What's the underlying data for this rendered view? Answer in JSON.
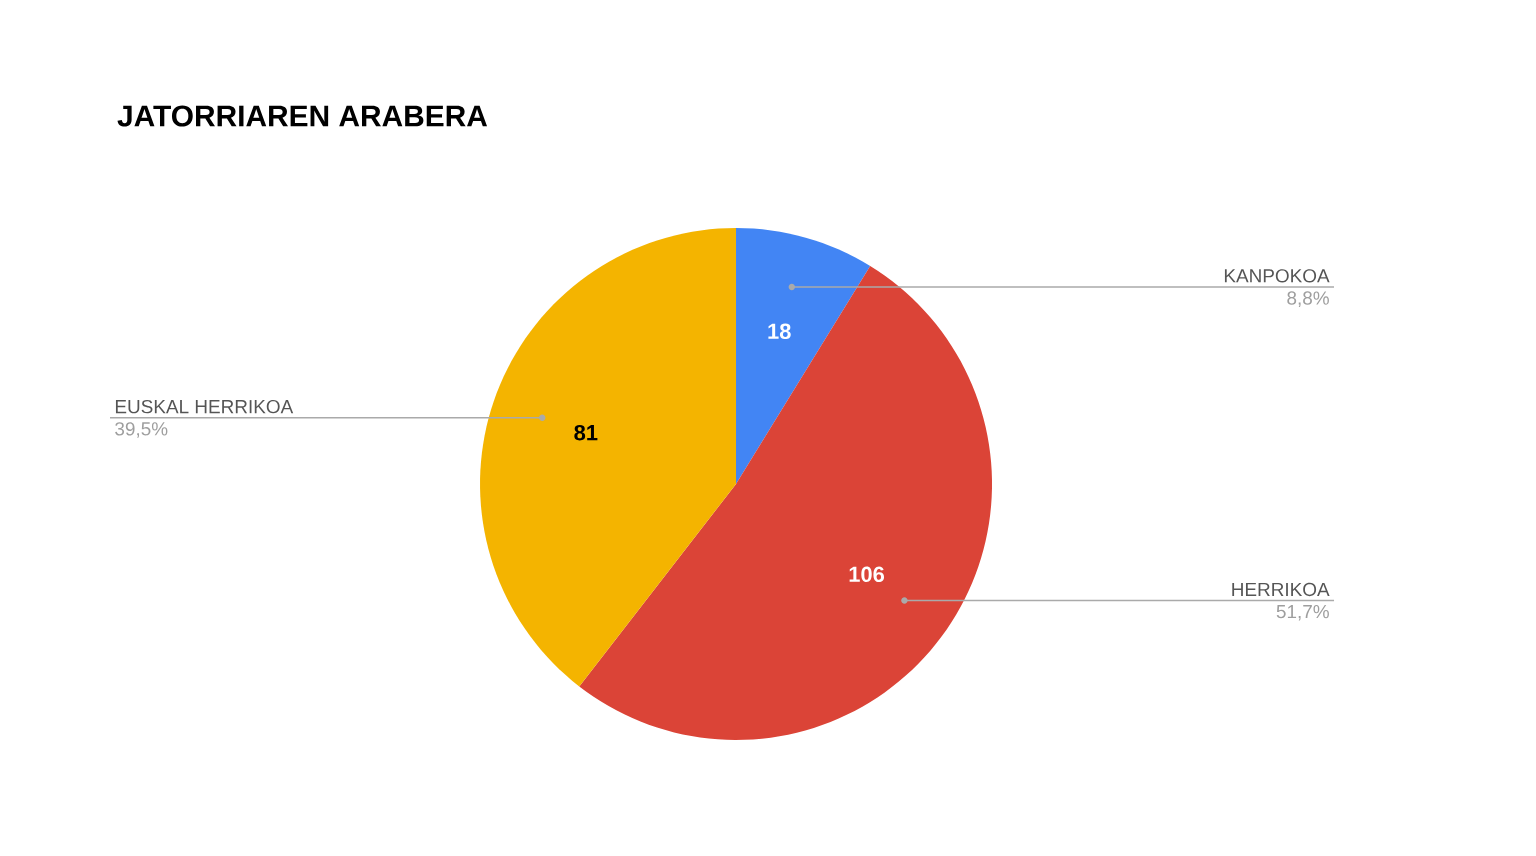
{
  "chart_data": {
    "type": "pie",
    "title": "JATORRIAREN ARABERA",
    "categories": [
      "KANPOKOA",
      "HERRIKOA",
      "EUSKAL HERRIKOA"
    ],
    "values": [
      18,
      106,
      81
    ],
    "colors": [
      "#4285f4",
      "#db4437",
      "#f4b400"
    ],
    "data_labels": true,
    "annotations": [
      "8,8%",
      "51,7%",
      "39,5%"
    ]
  }
}
